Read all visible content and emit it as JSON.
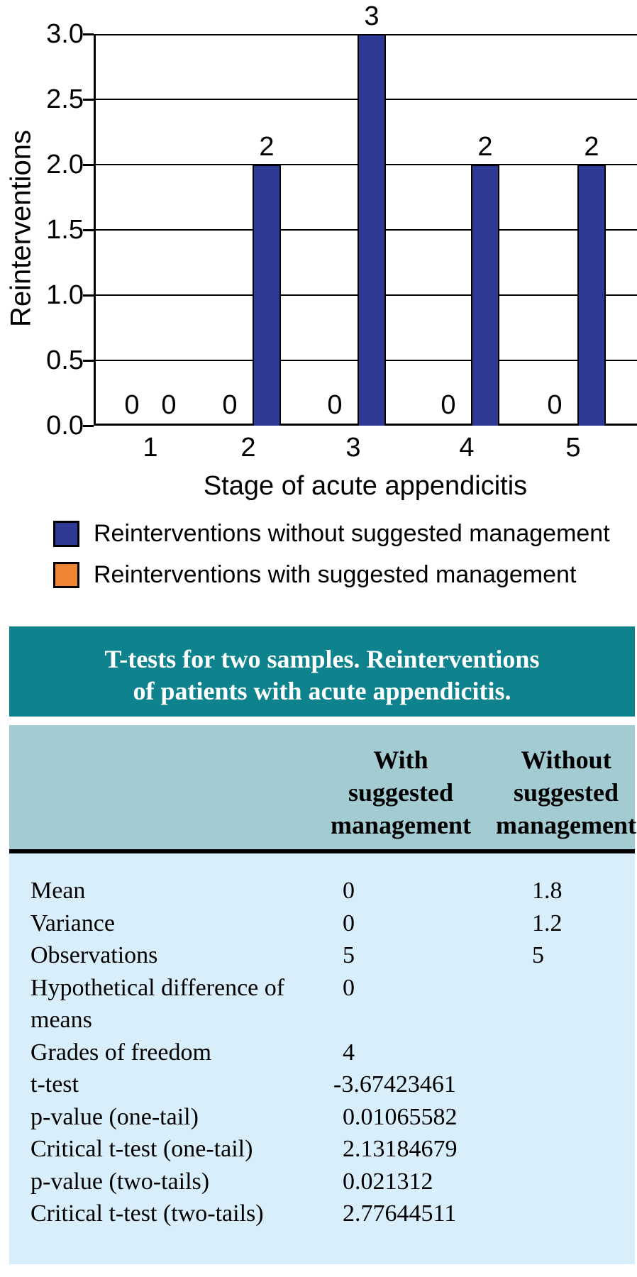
{
  "chart_data": {
    "type": "bar",
    "title": "",
    "xlabel": "Stage of acute appendicitis",
    "ylabel": "Reinterventions",
    "categories": [
      "1",
      "2",
      "3",
      "4",
      "5"
    ],
    "y_ticks": [
      "3.0",
      "2.5",
      "2.0",
      "1.5",
      "1.0",
      "0.5",
      "0.0"
    ],
    "ylim": [
      0.0,
      3.0
    ],
    "y_step": 0.5,
    "grid": true,
    "bar_value_labels_shown": true,
    "legend_position": "below-left",
    "series": [
      {
        "name": "Reinterventions with suggested management",
        "position": "left",
        "color": "#ef8532",
        "values": [
          0,
          0,
          0,
          0,
          0
        ]
      },
      {
        "name": "Reinterventions without suggested management",
        "position": "right",
        "color": "#2e3a94",
        "values": [
          0,
          2,
          3,
          2,
          2
        ]
      }
    ]
  },
  "legend": {
    "items": [
      {
        "label": "Reinterventions without suggested management",
        "color": "#2e3a94"
      },
      {
        "label": "Reinterventions with suggested management",
        "color": "#ef8532"
      }
    ]
  },
  "table": {
    "title_lines": [
      "T-tests for two samples. Reinterventions",
      "of patients with acute appendicitis."
    ],
    "columns": [
      {
        "lines": [
          "With",
          "suggested",
          "management"
        ]
      },
      {
        "lines": [
          "Without",
          "suggested",
          "management"
        ]
      }
    ],
    "rows": [
      {
        "label": "Mean",
        "with": "0",
        "without": "1.8"
      },
      {
        "label": "Variance",
        "with": "0",
        "without": "1.2"
      },
      {
        "label": "Observations",
        "with": "5",
        "without": "5"
      },
      {
        "label": "Hypothetical difference of means",
        "with": "0",
        "without": ""
      },
      {
        "label": "Grades of freedom",
        "with": "4",
        "without": ""
      },
      {
        "label": "t-test",
        "with": "-3.67423461",
        "without": ""
      },
      {
        "label": "p-value (one-tail)",
        "with": "0.01065582",
        "without": ""
      },
      {
        "label": "Critical t-test (one-tail)",
        "with": "2.13184679",
        "without": ""
      },
      {
        "label": "p-value (two-tails)",
        "with": "0.021312",
        "without": ""
      },
      {
        "label": "Critical t-test (two-tails)",
        "with": "2.77644511",
        "without": ""
      }
    ],
    "colors": {
      "title_band": "#0e838e",
      "header_band": "#a3cbd2",
      "body_band": "#d8eefa",
      "rule": "#000000",
      "title_text": "#ffffff"
    }
  }
}
